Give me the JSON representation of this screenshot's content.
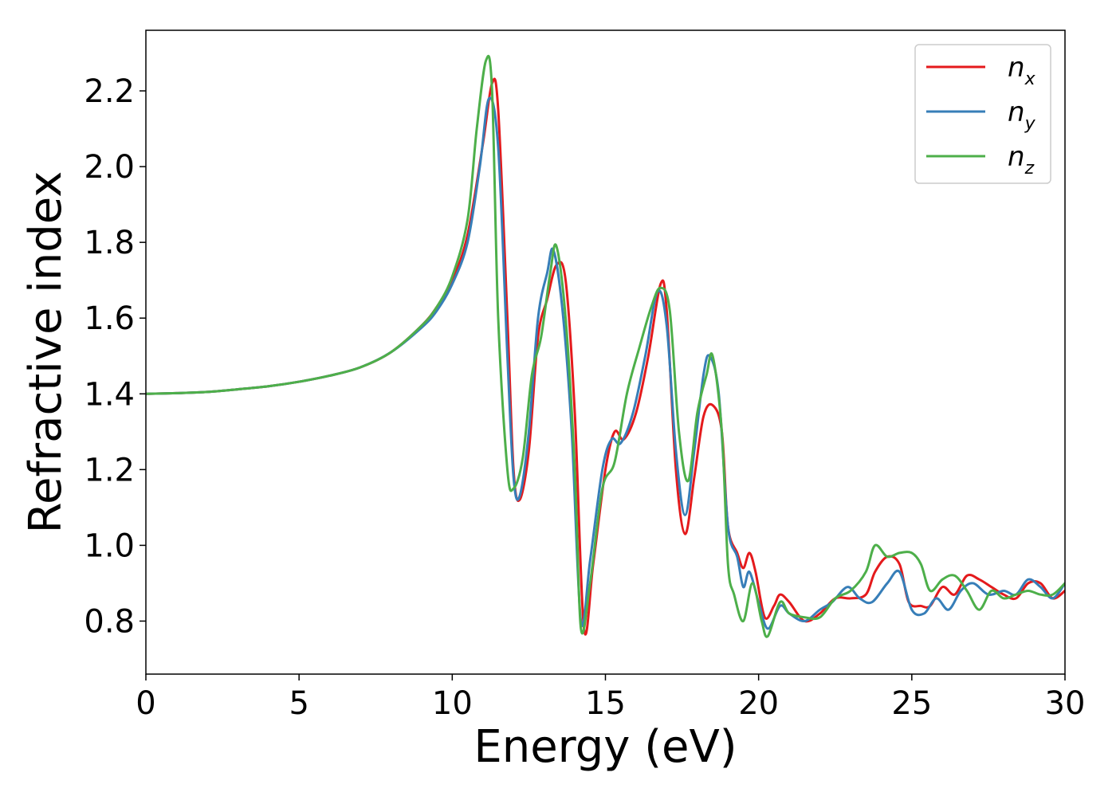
{
  "chart_data": {
    "type": "line",
    "title": "",
    "xlabel": "Energy (eV)",
    "ylabel": "Refractive index",
    "xlim": [
      0,
      30
    ],
    "ylim": [
      0.66,
      2.36
    ],
    "xticks": [
      0,
      5,
      10,
      15,
      20,
      25,
      30
    ],
    "yticks": [
      0.8,
      1.0,
      1.2,
      1.4,
      1.6,
      1.8,
      2.0,
      2.2
    ],
    "grid": false,
    "legend_position": "top-right",
    "legend": [
      {
        "base": "n",
        "sub": "x"
      },
      {
        "base": "n",
        "sub": "y"
      },
      {
        "base": "n",
        "sub": "z"
      }
    ],
    "series": [
      {
        "name": "n_x",
        "color": "#e41a1c",
        "points": [
          [
            0,
            1.4
          ],
          [
            1,
            1.402
          ],
          [
            2,
            1.405
          ],
          [
            3,
            1.412
          ],
          [
            4,
            1.42
          ],
          [
            5,
            1.432
          ],
          [
            6,
            1.448
          ],
          [
            7,
            1.47
          ],
          [
            8,
            1.51
          ],
          [
            9,
            1.58
          ],
          [
            9.5,
            1.63
          ],
          [
            10,
            1.7
          ],
          [
            10.5,
            1.82
          ],
          [
            11,
            2.06
          ],
          [
            11.3,
            2.22
          ],
          [
            11.5,
            2.15
          ],
          [
            11.8,
            1.6
          ],
          [
            12.0,
            1.2
          ],
          [
            12.2,
            1.12
          ],
          [
            12.5,
            1.25
          ],
          [
            12.8,
            1.55
          ],
          [
            13.1,
            1.65
          ],
          [
            13.4,
            1.74
          ],
          [
            13.7,
            1.7
          ],
          [
            14.0,
            1.35
          ],
          [
            14.3,
            0.78
          ],
          [
            14.6,
            0.95
          ],
          [
            15.0,
            1.2
          ],
          [
            15.3,
            1.3
          ],
          [
            15.6,
            1.28
          ],
          [
            16.0,
            1.35
          ],
          [
            16.4,
            1.5
          ],
          [
            16.8,
            1.69
          ],
          [
            17.0,
            1.62
          ],
          [
            17.3,
            1.2
          ],
          [
            17.6,
            1.03
          ],
          [
            17.9,
            1.18
          ],
          [
            18.2,
            1.34
          ],
          [
            18.5,
            1.37
          ],
          [
            18.8,
            1.3
          ],
          [
            19.0,
            1.05
          ],
          [
            19.3,
            0.98
          ],
          [
            19.5,
            0.94
          ],
          [
            19.7,
            0.98
          ],
          [
            19.9,
            0.93
          ],
          [
            20.2,
            0.81
          ],
          [
            20.5,
            0.84
          ],
          [
            20.7,
            0.87
          ],
          [
            21.0,
            0.85
          ],
          [
            21.5,
            0.8
          ],
          [
            22.0,
            0.82
          ],
          [
            22.5,
            0.86
          ],
          [
            23.0,
            0.86
          ],
          [
            23.5,
            0.87
          ],
          [
            23.8,
            0.93
          ],
          [
            24.2,
            0.97
          ],
          [
            24.6,
            0.95
          ],
          [
            24.9,
            0.85
          ],
          [
            25.3,
            0.84
          ],
          [
            25.6,
            0.84
          ],
          [
            26.0,
            0.89
          ],
          [
            26.4,
            0.87
          ],
          [
            26.8,
            0.92
          ],
          [
            27.2,
            0.91
          ],
          [
            27.6,
            0.89
          ],
          [
            28.0,
            0.87
          ],
          [
            28.4,
            0.86
          ],
          [
            28.8,
            0.9
          ],
          [
            29.2,
            0.9
          ],
          [
            29.6,
            0.86
          ],
          [
            30,
            0.88
          ]
        ]
      },
      {
        "name": "n_y",
        "color": "#377eb8",
        "points": [
          [
            0,
            1.4
          ],
          [
            1,
            1.402
          ],
          [
            2,
            1.405
          ],
          [
            3,
            1.412
          ],
          [
            4,
            1.42
          ],
          [
            5,
            1.432
          ],
          [
            6,
            1.448
          ],
          [
            7,
            1.47
          ],
          [
            8,
            1.51
          ],
          [
            9,
            1.575
          ],
          [
            9.5,
            1.62
          ],
          [
            10,
            1.69
          ],
          [
            10.5,
            1.8
          ],
          [
            10.9,
            2.0
          ],
          [
            11.2,
            2.18
          ],
          [
            11.5,
            2.05
          ],
          [
            11.8,
            1.5
          ],
          [
            12.0,
            1.18
          ],
          [
            12.2,
            1.13
          ],
          [
            12.5,
            1.3
          ],
          [
            12.8,
            1.6
          ],
          [
            13.1,
            1.72
          ],
          [
            13.3,
            1.78
          ],
          [
            13.6,
            1.62
          ],
          [
            13.9,
            1.3
          ],
          [
            14.2,
            0.8
          ],
          [
            14.5,
            0.96
          ],
          [
            14.9,
            1.2
          ],
          [
            15.2,
            1.28
          ],
          [
            15.5,
            1.27
          ],
          [
            15.9,
            1.35
          ],
          [
            16.3,
            1.5
          ],
          [
            16.7,
            1.67
          ],
          [
            17.0,
            1.58
          ],
          [
            17.3,
            1.25
          ],
          [
            17.6,
            1.08
          ],
          [
            17.9,
            1.25
          ],
          [
            18.2,
            1.45
          ],
          [
            18.4,
            1.5
          ],
          [
            18.7,
            1.4
          ],
          [
            19.0,
            1.05
          ],
          [
            19.3,
            0.97
          ],
          [
            19.5,
            0.89
          ],
          [
            19.7,
            0.93
          ],
          [
            20.0,
            0.85
          ],
          [
            20.3,
            0.78
          ],
          [
            20.7,
            0.84
          ],
          [
            21.0,
            0.82
          ],
          [
            21.5,
            0.8
          ],
          [
            22.0,
            0.83
          ],
          [
            22.4,
            0.85
          ],
          [
            22.9,
            0.89
          ],
          [
            23.3,
            0.86
          ],
          [
            23.7,
            0.85
          ],
          [
            24.2,
            0.9
          ],
          [
            24.6,
            0.93
          ],
          [
            25.0,
            0.83
          ],
          [
            25.4,
            0.82
          ],
          [
            25.8,
            0.86
          ],
          [
            26.2,
            0.83
          ],
          [
            26.6,
            0.88
          ],
          [
            27.0,
            0.9
          ],
          [
            27.5,
            0.87
          ],
          [
            28.0,
            0.88
          ],
          [
            28.4,
            0.87
          ],
          [
            28.8,
            0.91
          ],
          [
            29.2,
            0.89
          ],
          [
            29.6,
            0.86
          ],
          [
            30,
            0.9
          ]
        ]
      },
      {
        "name": "n_z",
        "color": "#4daf4a",
        "points": [
          [
            0,
            1.4
          ],
          [
            1,
            1.402
          ],
          [
            2,
            1.405
          ],
          [
            3,
            1.412
          ],
          [
            4,
            1.42
          ],
          [
            5,
            1.432
          ],
          [
            6,
            1.448
          ],
          [
            7,
            1.47
          ],
          [
            8,
            1.51
          ],
          [
            9,
            1.58
          ],
          [
            9.5,
            1.63
          ],
          [
            10,
            1.71
          ],
          [
            10.5,
            1.86
          ],
          [
            10.8,
            2.1
          ],
          [
            11.1,
            2.28
          ],
          [
            11.3,
            2.2
          ],
          [
            11.5,
            1.6
          ],
          [
            11.8,
            1.2
          ],
          [
            12.0,
            1.15
          ],
          [
            12.3,
            1.23
          ],
          [
            12.6,
            1.45
          ],
          [
            12.9,
            1.55
          ],
          [
            13.2,
            1.72
          ],
          [
            13.4,
            1.79
          ],
          [
            13.7,
            1.6
          ],
          [
            14.0,
            1.2
          ],
          [
            14.2,
            0.78
          ],
          [
            14.5,
            0.9
          ],
          [
            14.9,
            1.15
          ],
          [
            15.3,
            1.22
          ],
          [
            15.7,
            1.4
          ],
          [
            16.1,
            1.52
          ],
          [
            16.5,
            1.63
          ],
          [
            16.8,
            1.68
          ],
          [
            17.1,
            1.62
          ],
          [
            17.4,
            1.3
          ],
          [
            17.7,
            1.17
          ],
          [
            18.0,
            1.35
          ],
          [
            18.3,
            1.45
          ],
          [
            18.5,
            1.5
          ],
          [
            18.8,
            1.3
          ],
          [
            19.0,
            0.95
          ],
          [
            19.2,
            0.87
          ],
          [
            19.5,
            0.8
          ],
          [
            19.8,
            0.9
          ],
          [
            20.1,
            0.8
          ],
          [
            20.3,
            0.76
          ],
          [
            20.7,
            0.85
          ],
          [
            21.0,
            0.82
          ],
          [
            21.5,
            0.81
          ],
          [
            22.0,
            0.81
          ],
          [
            22.5,
            0.86
          ],
          [
            23.0,
            0.88
          ],
          [
            23.5,
            0.93
          ],
          [
            23.8,
            1.0
          ],
          [
            24.2,
            0.97
          ],
          [
            24.6,
            0.98
          ],
          [
            25.0,
            0.98
          ],
          [
            25.3,
            0.95
          ],
          [
            25.6,
            0.88
          ],
          [
            26.0,
            0.91
          ],
          [
            26.4,
            0.92
          ],
          [
            26.8,
            0.88
          ],
          [
            27.2,
            0.83
          ],
          [
            27.6,
            0.88
          ],
          [
            28.0,
            0.86
          ],
          [
            28.4,
            0.87
          ],
          [
            28.8,
            0.88
          ],
          [
            29.2,
            0.87
          ],
          [
            29.6,
            0.87
          ],
          [
            30,
            0.9
          ]
        ]
      }
    ]
  }
}
